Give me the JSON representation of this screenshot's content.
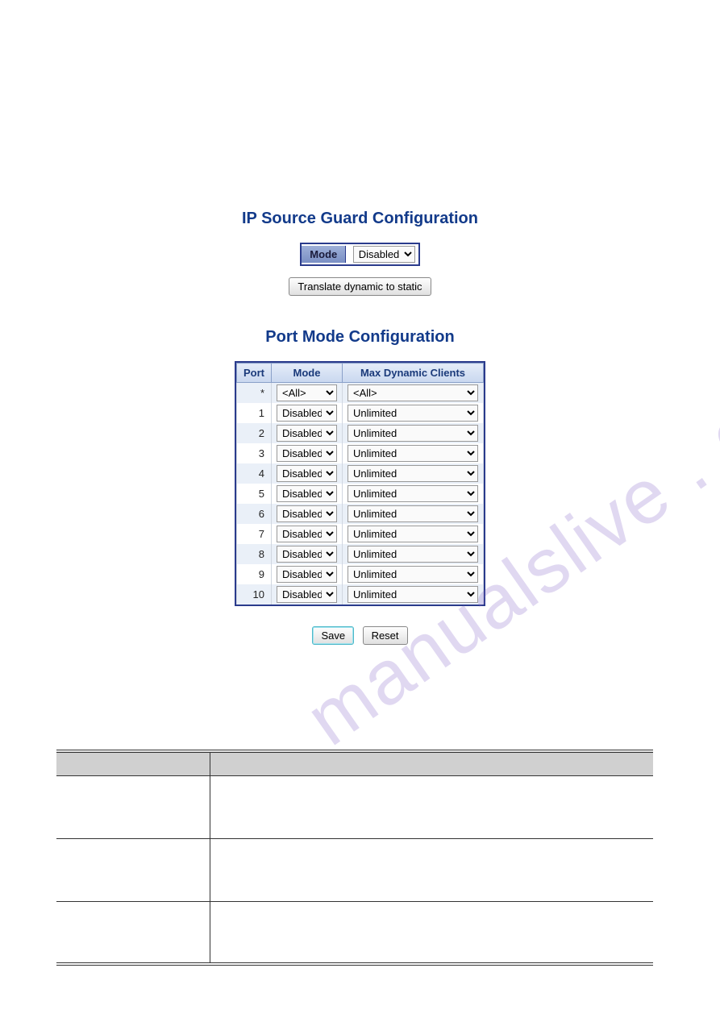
{
  "ip_source_guard": {
    "title": "IP Source Guard Configuration",
    "mode_label": "Mode",
    "mode_value": "Disabled",
    "translate_label": "Translate dynamic to static"
  },
  "port_mode": {
    "title": "Port Mode Configuration",
    "columns": {
      "port": "Port",
      "mode": "Mode",
      "max": "Max Dynamic Clients"
    },
    "rows": [
      {
        "port": "*",
        "mode": "<All>",
        "max": "<All>"
      },
      {
        "port": "1",
        "mode": "Disabled",
        "max": "Unlimited"
      },
      {
        "port": "2",
        "mode": "Disabled",
        "max": "Unlimited"
      },
      {
        "port": "3",
        "mode": "Disabled",
        "max": "Unlimited"
      },
      {
        "port": "4",
        "mode": "Disabled",
        "max": "Unlimited"
      },
      {
        "port": "5",
        "mode": "Disabled",
        "max": "Unlimited"
      },
      {
        "port": "6",
        "mode": "Disabled",
        "max": "Unlimited"
      },
      {
        "port": "7",
        "mode": "Disabled",
        "max": "Unlimited"
      },
      {
        "port": "8",
        "mode": "Disabled",
        "max": "Unlimited"
      },
      {
        "port": "9",
        "mode": "Disabled",
        "max": "Unlimited"
      },
      {
        "port": "10",
        "mode": "Disabled",
        "max": "Unlimited"
      }
    ]
  },
  "actions": {
    "save": "Save",
    "reset": "Reset"
  },
  "colors": {
    "title_color": "#123a8a",
    "table_border": "#2a3b8c",
    "header_bg_top": "#e4ecf8",
    "header_bg_bottom": "#c9d7ef",
    "row_even": "#eaf0f8",
    "row_odd": "#ffffff",
    "watermark": "rgba(130,100,200,0.25)",
    "lower_header_bg": "#d0d0d0"
  },
  "watermark_text": "manualslive . com",
  "lower_table": {
    "body_rows": 3
  }
}
